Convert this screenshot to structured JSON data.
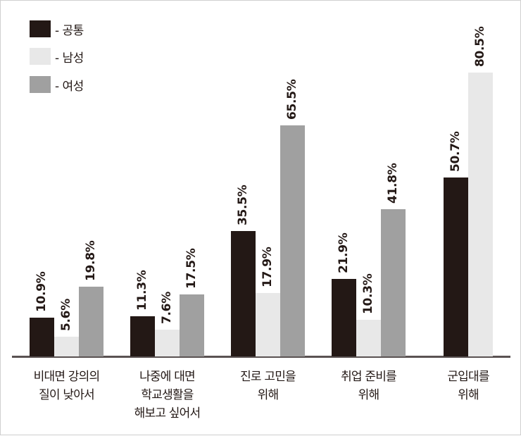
{
  "chart_data": {
    "type": "bar",
    "title": "",
    "xlabel": "",
    "ylabel": "",
    "ylim": [
      0,
      85
    ],
    "grid": false,
    "legend_position": "top-left",
    "unit": "%",
    "categories": [
      "비대면 강의의\n질이 낮아서",
      "나중에 대면\n학교생활을\n해보고 싶어서",
      "진로 고민을\n위해",
      "취업 준비를\n위해",
      "군입대를\n위해"
    ],
    "series": [
      {
        "name": "공통",
        "color": "#231815",
        "values": [
          10.9,
          11.3,
          35.5,
          21.9,
          50.7
        ]
      },
      {
        "name": "남성",
        "color": "#e8e8e8",
        "values": [
          5.6,
          7.6,
          17.9,
          10.3,
          80.5
        ]
      },
      {
        "name": "여성",
        "color": "#a0a0a0",
        "values": [
          19.8,
          17.5,
          65.5,
          41.8,
          null
        ]
      }
    ],
    "data_labels": [
      [
        "10.9%",
        "5.6%",
        "19.8%"
      ],
      [
        "11.3%",
        "7.6%",
        "17.5%"
      ],
      [
        "35.5%",
        "17.9%",
        "65.5%"
      ],
      [
        "21.9%",
        "10.3%",
        "41.8%"
      ],
      [
        "50.7%",
        "80.5%"
      ]
    ]
  },
  "legend": [
    {
      "label": "- 공통",
      "color": "#231815"
    },
    {
      "label": "- 남성",
      "color": "#e8e8e8"
    },
    {
      "label": "- 여성",
      "color": "#a0a0a0"
    }
  ],
  "colors": {
    "axis": "#5a5252",
    "text": "#231815",
    "border": "#cfcfcf"
  }
}
